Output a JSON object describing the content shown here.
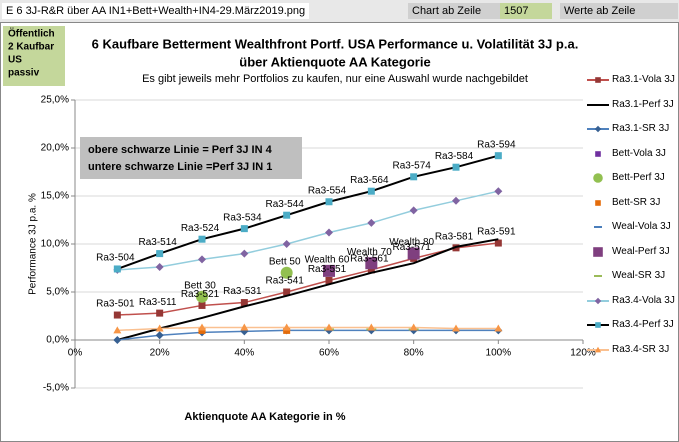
{
  "header": {
    "file": "E 6 3J-R&R über AA IN1+Bett+Wealth+IN4-29.März2019.png",
    "chart_from": "Chart ab Zeile",
    "row": "1507",
    "values_from": "Werte ab Zeile"
  },
  "chart_data": {
    "type": "line",
    "badge": [
      "Öffentlich",
      "2 Kaufbar",
      "US",
      "passiv"
    ],
    "title": "6 Kaufbare Betterment Wealthfront Portf. USA  Performance u. Volatilität 3J p.a.",
    "title2": "über Aktienquote AA Kategorie",
    "subtitle": "Es gibt jeweils mehr Portfolios zu kaufen, nur eine Auswahl wurde nachgebildet",
    "annotation": [
      "obere schwarze Linie  = Perf 3J IN 4",
      "untere schwarze Linie  =Perf 3J IN 1"
    ],
    "xlabel": "Aktienquote AA Kategorie in %",
    "ylabel": "Performance 3J  p.a.  %",
    "xlim": [
      0,
      120
    ],
    "ylim": [
      -5,
      25
    ],
    "xticks": [
      {
        "value": 0,
        "label": "0%"
      },
      {
        "value": 20,
        "label": "20%"
      },
      {
        "value": 40,
        "label": "40%"
      },
      {
        "value": 60,
        "label": "60%"
      },
      {
        "value": 80,
        "label": "80%"
      },
      {
        "value": 100,
        "label": "100%"
      },
      {
        "value": 120,
        "label": "120%"
      }
    ],
    "yticks": [
      {
        "value": -5,
        "label": "-5,0%"
      },
      {
        "value": 0,
        "label": "0,0%"
      },
      {
        "value": 5,
        "label": "5,0%"
      },
      {
        "value": 10,
        "label": "10,0%"
      },
      {
        "value": 15,
        "label": "15,0%"
      },
      {
        "value": 20,
        "label": "20,0%"
      },
      {
        "value": 25,
        "label": "25,0%"
      }
    ],
    "grid": true,
    "legend": "right",
    "series": [
      {
        "name": "Ra3.1-Vola 3J",
        "color": "#953735",
        "line_color": "#c0504d",
        "marker": "square",
        "x": [
          10,
          20,
          30,
          40,
          50,
          60,
          70,
          80,
          90,
          100
        ],
        "values": [
          2.6,
          2.8,
          3.6,
          3.9,
          5.0,
          6.2,
          7.3,
          8.5,
          9.6,
          10.1
        ],
        "labels": [
          "Ra3-501",
          "Ra3-511",
          "Ra3-521",
          "Ra3-531",
          "Ra3-541",
          "Ra3-551",
          "Ra3-561",
          "Ra3-571",
          "Ra3-581",
          "Ra3-591"
        ]
      },
      {
        "name": "Ra3.1-Perf 3J",
        "color": "#000000",
        "line_color": "#000000",
        "marker": "none",
        "x": [
          10,
          20,
          30,
          40,
          50,
          60,
          70,
          80,
          90,
          100
        ],
        "values": [
          0.0,
          1.2,
          2.3,
          3.5,
          4.6,
          5.8,
          7.0,
          8.0,
          9.7,
          10.5
        ]
      },
      {
        "name": "Ra3.1-SR 3J",
        "color": "#376092",
        "line_color": "#4f81bd",
        "marker": "diamond",
        "x": [
          10,
          20,
          30,
          40,
          50,
          60,
          70,
          80,
          90,
          100
        ],
        "values": [
          0.0,
          0.5,
          0.8,
          0.9,
          1.0,
          1.0,
          1.0,
          1.0,
          1.0,
          1.0
        ]
      },
      {
        "name": "Bett-Vola 3J",
        "color": "#7030a0",
        "marker": "square",
        "x": [
          30,
          50
        ],
        "values": [
          4.7,
          7.1
        ]
      },
      {
        "name": "Bett-Perf 3J",
        "color": "#92c050",
        "marker": "circle",
        "x": [
          30,
          50
        ],
        "values": [
          4.5,
          7.0
        ],
        "labels": [
          "Bett 30",
          "Bett 50"
        ]
      },
      {
        "name": "Bett-SR 3J",
        "color": "#e46c0a",
        "marker": "square",
        "x": [
          30,
          50
        ],
        "values": [
          1.0,
          1.0
        ]
      },
      {
        "name": "Weal-Vola 3J",
        "color": "#4a7ebb",
        "marker": "dash",
        "x": [
          60,
          70,
          80
        ],
        "values": [
          7.0,
          7.8,
          8.8
        ]
      },
      {
        "name": "Weal-Perf 3J",
        "color": "#7f3f7f",
        "marker": "bigsquare",
        "x": [
          60,
          70,
          80
        ],
        "values": [
          7.2,
          8.0,
          9.0
        ],
        "labels": [
          "Wealth 60",
          "Wealth 70",
          "Wealth 80"
        ]
      },
      {
        "name": "Weal-SR 3J",
        "color": "#9bbb59",
        "marker": "dash",
        "x": [
          60,
          70,
          80
        ],
        "values": [
          1.1,
          1.1,
          1.1
        ]
      },
      {
        "name": "Ra3.4-Vola 3J",
        "color": "#8064a2",
        "line_color": "#93cddd",
        "marker": "diamond",
        "x": [
          10,
          20,
          30,
          40,
          50,
          60,
          70,
          80,
          90,
          100
        ],
        "values": [
          7.3,
          7.6,
          8.4,
          9.0,
          10.0,
          11.2,
          12.2,
          13.5,
          14.5,
          15.5
        ]
      },
      {
        "name": "Ra3.4-Perf 3J",
        "color": "#4bacc6",
        "line_color": "#000000",
        "marker": "square",
        "x": [
          10,
          20,
          30,
          40,
          50,
          60,
          70,
          80,
          90,
          100
        ],
        "values": [
          7.4,
          9.0,
          10.5,
          11.6,
          13.0,
          14.4,
          15.5,
          17.0,
          18.0,
          19.2
        ],
        "labels": [
          "Ra3-504",
          "Ra3-514",
          "Ra3-524",
          "Ra3-534",
          "Ra3-544",
          "Ra3-554",
          "Ra3-564",
          "Ra3-574",
          "Ra3-584",
          "Ra3-594"
        ]
      },
      {
        "name": "Ra3.4-SR 3J",
        "color": "#f79646",
        "line_color": "#fac090",
        "marker": "triangle",
        "x": [
          10,
          20,
          30,
          40,
          50,
          60,
          70,
          80,
          90,
          100
        ],
        "values": [
          1.0,
          1.2,
          1.3,
          1.3,
          1.3,
          1.3,
          1.3,
          1.3,
          1.2,
          1.2
        ]
      }
    ]
  }
}
